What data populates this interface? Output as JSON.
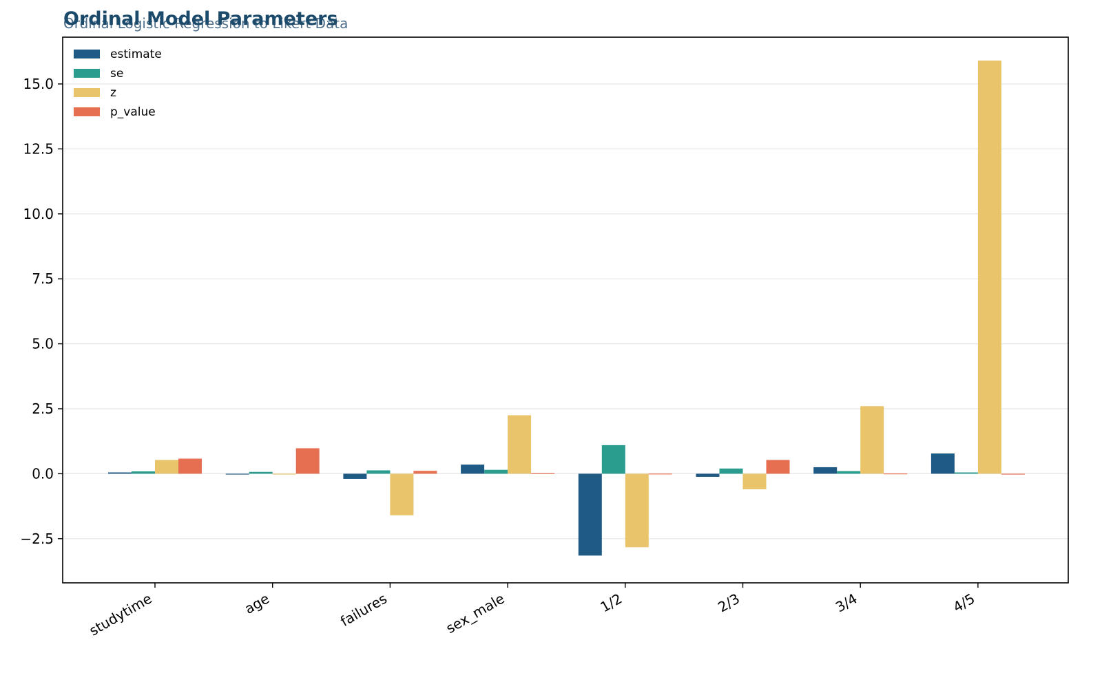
{
  "chart_data": {
    "type": "bar",
    "title": "Ordinal Model Parameters",
    "subtitle": "Ordinal Logistic Regression to Likert Data",
    "xlabel": "",
    "ylabel": "",
    "categories": [
      "studytime",
      "age",
      "failures",
      "sex_male",
      "1/2",
      "2/3",
      "3/4",
      "4/5"
    ],
    "series": [
      {
        "name": "estimate",
        "color": "#1f5a85",
        "values": [
          0.05,
          -0.01,
          -0.2,
          0.35,
          -3.15,
          -0.12,
          0.25,
          0.78
        ]
      },
      {
        "name": "se",
        "color": "#2a9d8f",
        "values": [
          0.09,
          0.07,
          0.13,
          0.15,
          1.1,
          0.2,
          0.1,
          0.05
        ]
      },
      {
        "name": "z",
        "color": "#e9c46a",
        "values": [
          0.53,
          -0.02,
          -1.6,
          2.25,
          -2.83,
          -0.6,
          2.6,
          15.9
        ]
      },
      {
        "name": "p_value",
        "color": "#e76f51",
        "values": [
          0.58,
          0.98,
          0.11,
          0.02,
          0.005,
          0.53,
          0.01,
          0.0
        ]
      }
    ],
    "ylim": [
      -4.2,
      16.8
    ],
    "yticks": [
      -2.5,
      0.0,
      2.5,
      5.0,
      7.5,
      10.0,
      12.5,
      15.0
    ],
    "ytick_labels": [
      "−2.5",
      "0.0",
      "2.5",
      "5.0",
      "7.5",
      "10.0",
      "12.5",
      "15.0"
    ],
    "grid": "horizontal",
    "legend_position": "top-left"
  }
}
